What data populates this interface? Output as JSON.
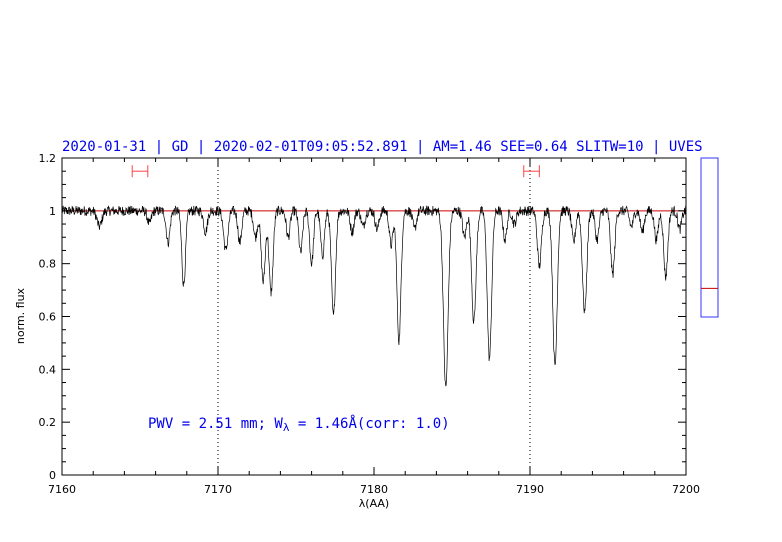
{
  "chart_data": {
    "type": "line",
    "title": "2020-01-31 | GD | 2020-02-01T09:05:52.891 | AM=1.46 SEE=0.64 SLITW=10 | UVES",
    "xlabel": "λ(AA)",
    "ylabel": "norm. flux",
    "xlim": [
      7160,
      7200
    ],
    "ylim": [
      0,
      1.2
    ],
    "x_ticks": [
      7160,
      7170,
      7180,
      7190,
      7200
    ],
    "x_tick_labels": [
      "7160",
      "7170",
      "7180",
      "7190",
      "7200"
    ],
    "y_ticks": [
      0,
      0.2,
      0.4,
      0.6,
      0.8,
      1.0,
      1.2
    ],
    "y_tick_labels": [
      "0",
      "0.2",
      "0.4",
      "0.6",
      "0.8",
      "1",
      "1.2"
    ],
    "continuum_level": 1.0,
    "vertical_markers": [
      7170,
      7190
    ],
    "ranges": [
      [
        7164.5,
        7165.5
      ],
      [
        7189.6,
        7190.6
      ]
    ],
    "range_marker_y": 1.15,
    "annotation": {
      "prefix": "PWV = 2.51 mm; W",
      "subscript": "λ",
      "suffix": " = 1.46Å(corr: 1.0)"
    },
    "absorption_lines": [
      {
        "x": 7162.4,
        "depth": 0.06,
        "width": 0.15
      },
      {
        "x": 7165.6,
        "depth": 0.05,
        "width": 0.12
      },
      {
        "x": 7166.8,
        "depth": 0.12,
        "width": 0.12
      },
      {
        "x": 7167.8,
        "depth": 0.28,
        "width": 0.12
      },
      {
        "x": 7169.2,
        "depth": 0.08,
        "width": 0.12
      },
      {
        "x": 7170.5,
        "depth": 0.15,
        "width": 0.14
      },
      {
        "x": 7171.4,
        "depth": 0.12,
        "width": 0.12
      },
      {
        "x": 7172.4,
        "depth": 0.1,
        "width": 0.12
      },
      {
        "x": 7172.9,
        "depth": 0.27,
        "width": 0.13
      },
      {
        "x": 7173.4,
        "depth": 0.31,
        "width": 0.13
      },
      {
        "x": 7174.5,
        "depth": 0.1,
        "width": 0.12
      },
      {
        "x": 7175.3,
        "depth": 0.16,
        "width": 0.12
      },
      {
        "x": 7176.0,
        "depth": 0.2,
        "width": 0.12
      },
      {
        "x": 7176.7,
        "depth": 0.17,
        "width": 0.12
      },
      {
        "x": 7177.4,
        "depth": 0.4,
        "width": 0.13
      },
      {
        "x": 7178.6,
        "depth": 0.08,
        "width": 0.12
      },
      {
        "x": 7179.3,
        "depth": 0.06,
        "width": 0.12
      },
      {
        "x": 7180.2,
        "depth": 0.07,
        "width": 0.12
      },
      {
        "x": 7181.1,
        "depth": 0.13,
        "width": 0.12
      },
      {
        "x": 7181.6,
        "depth": 0.49,
        "width": 0.13
      },
      {
        "x": 7182.6,
        "depth": 0.07,
        "width": 0.12
      },
      {
        "x": 7184.6,
        "depth": 0.67,
        "width": 0.15
      },
      {
        "x": 7185.8,
        "depth": 0.1,
        "width": 0.12
      },
      {
        "x": 7186.4,
        "depth": 0.42,
        "width": 0.14
      },
      {
        "x": 7187.4,
        "depth": 0.56,
        "width": 0.14
      },
      {
        "x": 7188.4,
        "depth": 0.11,
        "width": 0.12
      },
      {
        "x": 7189.0,
        "depth": 0.05,
        "width": 0.12
      },
      {
        "x": 7190.6,
        "depth": 0.21,
        "width": 0.13
      },
      {
        "x": 7191.6,
        "depth": 0.59,
        "width": 0.14
      },
      {
        "x": 7192.8,
        "depth": 0.12,
        "width": 0.12
      },
      {
        "x": 7193.5,
        "depth": 0.38,
        "width": 0.14
      },
      {
        "x": 7194.3,
        "depth": 0.11,
        "width": 0.12
      },
      {
        "x": 7195.3,
        "depth": 0.24,
        "width": 0.13
      },
      {
        "x": 7196.5,
        "depth": 0.06,
        "width": 0.12
      },
      {
        "x": 7197.2,
        "depth": 0.08,
        "width": 0.12
      },
      {
        "x": 7198.1,
        "depth": 0.11,
        "width": 0.12
      },
      {
        "x": 7198.7,
        "depth": 0.25,
        "width": 0.13
      },
      {
        "x": 7199.6,
        "depth": 0.07,
        "width": 0.12
      }
    ],
    "noise_amplitude": 0.012,
    "colors": {
      "spectrum": "#000000",
      "continuum": "#cc0000",
      "range_markers": "#ff4444",
      "title": "#0000ee",
      "annotation": "#0000ee",
      "side_box": "#3333ff",
      "side_marker": "#cc0000"
    },
    "side_indicator": {
      "ylim": [
        0,
        1
      ],
      "value": 0.18
    }
  }
}
